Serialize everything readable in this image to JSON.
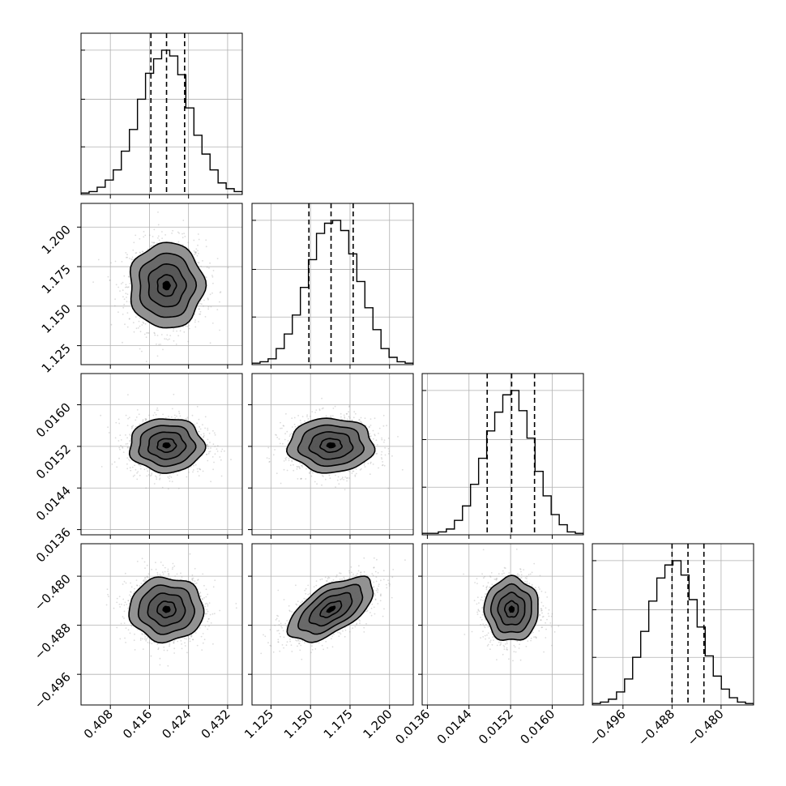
{
  "chart_data": {
    "type": "corner",
    "title": "",
    "grid": true,
    "colors": {
      "line": "#000000",
      "grid": "#b0b0b0",
      "density": "#000000",
      "points": "#9a9a9a"
    },
    "parameters": [
      {
        "mean": 0.4195,
        "sd": 0.0038,
        "ticks": [
          0.408,
          0.416,
          0.424,
          0.432
        ],
        "tick_labels": [
          "0.408",
          "0.416",
          "0.424",
          "0.432"
        ],
        "range": [
          0.402,
          0.435
        ]
      },
      {
        "mean": 1.163,
        "sd": 0.0135,
        "ticks": [
          1.125,
          1.15,
          1.175,
          1.2
        ],
        "tick_labels": [
          "1.125",
          "1.150",
          "1.175",
          "1.200"
        ],
        "range": [
          1.113,
          1.215
        ]
      },
      {
        "mean": 0.01522,
        "sd": 0.00026,
        "ticks": [
          0.0136,
          0.0144,
          0.0152,
          0.016
        ],
        "tick_labels": [
          "0.0136",
          "0.0144",
          "0.0152",
          "0.0160"
        ],
        "range": [
          0.0135,
          0.0166
        ]
      },
      {
        "mean": -0.4854,
        "sd": 0.0026,
        "ticks": [
          -0.496,
          -0.488,
          -0.48
        ],
        "tick_labels": [
          "−0.496",
          "−0.488",
          "−0.480"
        ],
        "range": [
          -0.501,
          -0.4747
        ]
      }
    ],
    "quantiles": [
      [
        0.4163,
        0.4195,
        0.4232
      ],
      [
        1.149,
        1.163,
        1.177
      ],
      [
        0.01475,
        0.01522,
        0.01566
      ],
      [
        -0.488,
        -0.4854,
        -0.4828
      ]
    ],
    "histograms": [
      {
        "bins": [
          0.402,
          0.435
        ],
        "counts": [
          0.01,
          0.02,
          0.05,
          0.1,
          0.17,
          0.3,
          0.45,
          0.66,
          0.84,
          0.94,
          1.0,
          0.96,
          0.83,
          0.6,
          0.41,
          0.28,
          0.17,
          0.08,
          0.04,
          0.02
        ]
      },
      {
        "bins": [
          1.113,
          1.215
        ],
        "counts": [
          0.01,
          0.02,
          0.04,
          0.11,
          0.21,
          0.34,
          0.53,
          0.72,
          0.9,
          0.97,
          0.99,
          0.92,
          0.76,
          0.57,
          0.39,
          0.24,
          0.11,
          0.05,
          0.02,
          0.01
        ]
      },
      {
        "bins": [
          0.0135,
          0.0166
        ],
        "counts": [
          0.01,
          0.01,
          0.02,
          0.04,
          0.1,
          0.2,
          0.35,
          0.53,
          0.72,
          0.85,
          0.97,
          1.0,
          0.86,
          0.67,
          0.44,
          0.27,
          0.14,
          0.07,
          0.02,
          0.01
        ]
      },
      {
        "bins": [
          -0.501,
          -0.4747
        ],
        "counts": [
          0.01,
          0.02,
          0.04,
          0.09,
          0.18,
          0.33,
          0.51,
          0.72,
          0.88,
          0.97,
          1.0,
          0.9,
          0.73,
          0.54,
          0.34,
          0.2,
          0.11,
          0.05,
          0.02,
          0.01
        ]
      }
    ],
    "correlations": [
      {
        "pair": [
          1,
          0
        ],
        "rho": 0.0
      },
      {
        "pair": [
          2,
          0
        ],
        "rho": 0.0
      },
      {
        "pair": [
          2,
          1
        ],
        "rho": 0.0
      },
      {
        "pair": [
          3,
          0
        ],
        "rho": 0.0
      },
      {
        "pair": [
          3,
          1
        ],
        "rho": 0.6
      },
      {
        "pair": [
          3,
          2
        ],
        "rho": 0.0
      }
    ],
    "contour_levels_sigma": [
      0.5,
      1.0,
      1.5,
      2.0
    ]
  }
}
